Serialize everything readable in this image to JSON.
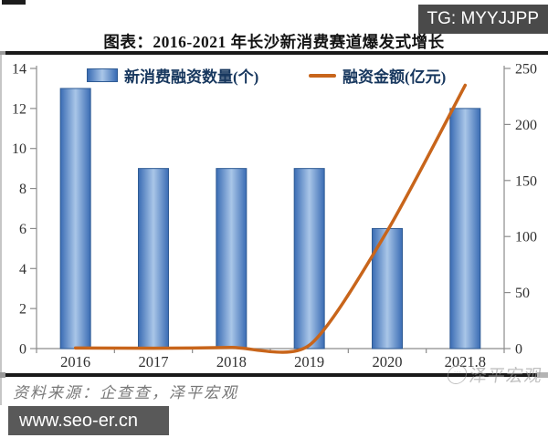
{
  "badges": {
    "tg": "TG: MYYJJPP",
    "site": "www.seo-er.cn"
  },
  "header": {
    "title": "图表：2016-2021 年长沙新消费赛道爆发式增长"
  },
  "legend": {
    "bar_label": "新消费融资数量(个)",
    "line_label": "融资金额(亿元)"
  },
  "footer": {
    "source": "资料来源：企查查，泽平宏观",
    "watermark": "泽平宏观",
    "watermark_logo": "···"
  },
  "colors": {
    "bar_edge": "#3a6cb4",
    "bar_center": "#a9c6e8",
    "bar_border": "#2f5b94",
    "line": "#c8651b",
    "axis": "#8c8c8c",
    "tick_label": "#303030"
  },
  "chart_data": {
    "type": "combo",
    "title": "图表：2016-2021 年长沙新消费赛道爆发式增长",
    "categories": [
      "2016",
      "2017",
      "2018",
      "2019",
      "2020",
      "2021.8"
    ],
    "series": [
      {
        "name": "新消费融资数量(个)",
        "type": "bar",
        "axis": "left",
        "values": [
          13,
          9,
          9,
          9,
          6,
          12
        ]
      },
      {
        "name": "融资金额(亿元)",
        "type": "line",
        "axis": "right",
        "values": [
          0.5,
          0.3,
          1,
          3,
          105,
          235
        ]
      }
    ],
    "left_axis": {
      "range": [
        0,
        14
      ],
      "ticks": [
        0,
        2,
        4,
        6,
        8,
        10,
        12,
        14
      ]
    },
    "right_axis": {
      "range": [
        0,
        250
      ],
      "ticks": [
        0,
        50,
        100,
        150,
        200,
        250
      ]
    },
    "grid": false,
    "legend_position": "top"
  }
}
